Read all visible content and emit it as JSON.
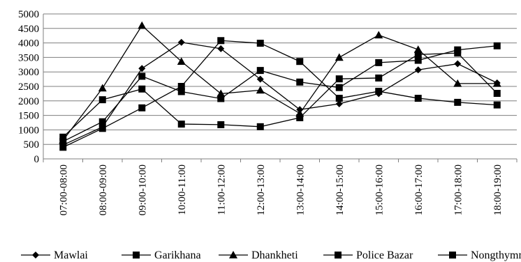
{
  "chart_data": {
    "type": "line",
    "title": "",
    "xlabel": "",
    "ylabel": "",
    "ylim": [
      0,
      5000
    ],
    "yticks": [
      0,
      500,
      1000,
      1500,
      2000,
      2500,
      3000,
      3500,
      4000,
      4500,
      5000
    ],
    "grid": "horizontal",
    "legend_position": "bottom",
    "line_color": "#000000",
    "categories": [
      "07:00-08:00",
      "08:00-09:00",
      "09:00-10:00",
      "10:00-11:00",
      "11:00-12:00",
      "12:00-13:00",
      "13:00-14:00",
      "14:00-15:00",
      "15:00-16:00",
      "16:00-17:00",
      "17:00-18:00",
      "18:00-19:00"
    ],
    "series": [
      {
        "name": "Mawlai",
        "marker": "diamond",
        "values": [
          480,
          1100,
          3120,
          4020,
          3800,
          2750,
          1700,
          1900,
          2250,
          3070,
          3280,
          2620
        ]
      },
      {
        "name": "Garikhana",
        "marker": "square",
        "values": [
          600,
          1280,
          2850,
          2320,
          2080,
          3050,
          2650,
          2460,
          3320,
          3400,
          3760,
          3900
        ]
      },
      {
        "name": "Dhankheti",
        "marker": "triangle",
        "values": [
          640,
          2440,
          4600,
          3360,
          2250,
          2370,
          1570,
          3500,
          4270,
          3770,
          2600,
          2600
        ]
      },
      {
        "name": "Police Bazar",
        "marker": "square",
        "values": [
          750,
          2040,
          2410,
          1200,
          1180,
          1110,
          1420,
          2760,
          2790,
          3600,
          3650,
          2260
        ]
      },
      {
        "name": "Nongthymmai",
        "marker": "square",
        "values": [
          400,
          1050,
          1760,
          2500,
          4080,
          3990,
          3360,
          2090,
          2330,
          2090,
          1950,
          1860
        ]
      }
    ]
  }
}
